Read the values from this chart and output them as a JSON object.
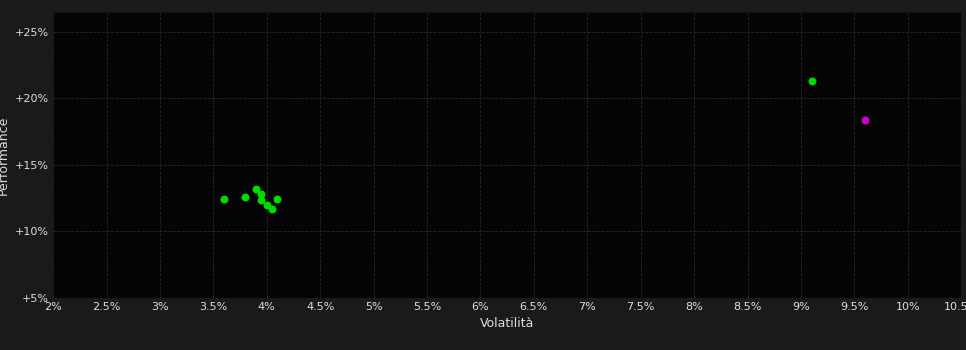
{
  "background_color": "#1a1a1a",
  "plot_bg_color": "#050505",
  "grid_color": "#2a2a2a",
  "text_color": "#dddddd",
  "xlabel": "Volatilità",
  "ylabel": "Performance",
  "xlim": [
    0.02,
    0.105
  ],
  "ylim": [
    0.05,
    0.265
  ],
  "xticks": [
    0.02,
    0.025,
    0.03,
    0.035,
    0.04,
    0.045,
    0.05,
    0.055,
    0.06,
    0.065,
    0.07,
    0.075,
    0.08,
    0.085,
    0.09,
    0.095,
    0.1,
    0.105
  ],
  "xtick_labels": [
    "2%",
    "2.5%",
    "3%",
    "3.5%",
    "4%",
    "4.5%",
    "5%",
    "5.5%",
    "6%",
    "6.5%",
    "7%",
    "7.5%",
    "8%",
    "8.5%",
    "9%",
    "9.5%",
    "10%",
    "10.5%"
  ],
  "yticks": [
    0.05,
    0.1,
    0.15,
    0.2,
    0.25
  ],
  "ytick_labels": [
    "+5%",
    "+10%",
    "+15%",
    "+20%",
    "+25%"
  ],
  "green_points": [
    [
      0.036,
      0.124
    ],
    [
      0.038,
      0.126
    ],
    [
      0.039,
      0.132
    ],
    [
      0.0395,
      0.128
    ],
    [
      0.0395,
      0.1235
    ],
    [
      0.04,
      0.12
    ],
    [
      0.0405,
      0.117
    ],
    [
      0.041,
      0.124
    ]
  ],
  "magenta_points": [
    [
      0.096,
      0.184
    ]
  ],
  "green_solo_point": [
    [
      0.091,
      0.213
    ]
  ],
  "green_color": "#00dd00",
  "magenta_color": "#cc00cc",
  "point_size": 22,
  "font_size": 8
}
